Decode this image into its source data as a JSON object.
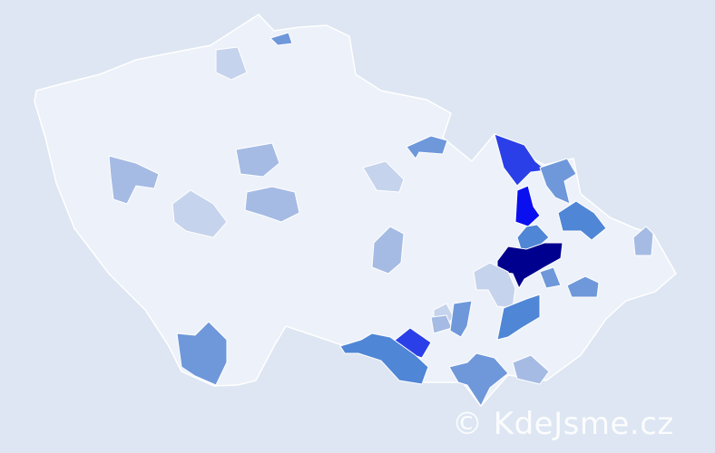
{
  "watermark": "© KdeJsme.cz",
  "colors": {
    "background": "#dde6f2",
    "base": "#edf1f9",
    "border": "#ffffff",
    "level_1": "#c6d3ec",
    "level_2": "#a5bbe4",
    "level_3": "#6f98da",
    "level_4": "#4f86d6",
    "level_5": "#2a3fe8",
    "level_6": "#0a0ff0",
    "level_7": "#00008e"
  },
  "regions": [
    {
      "name": "north-1",
      "level": "level_1"
    },
    {
      "name": "north-2",
      "level": "level_3"
    },
    {
      "name": "west-1",
      "level": "level_2"
    },
    {
      "name": "center-west-1",
      "level": "level_2"
    },
    {
      "name": "center-west-2",
      "level": "level_1"
    },
    {
      "name": "center-1",
      "level": "level_2"
    },
    {
      "name": "center-2",
      "level": "level_1"
    },
    {
      "name": "east-1",
      "level": "level_3"
    },
    {
      "name": "east-2",
      "level": "level_5"
    },
    {
      "name": "east-3",
      "level": "level_3"
    },
    {
      "name": "east-4",
      "level": "level_6"
    },
    {
      "name": "east-5",
      "level": "level_4"
    },
    {
      "name": "east-6",
      "level": "level_4"
    },
    {
      "name": "east-7",
      "level": "level_7"
    },
    {
      "name": "east-8",
      "level": "level_1"
    },
    {
      "name": "east-9",
      "level": "level_3"
    },
    {
      "name": "east-10",
      "level": "level_3"
    },
    {
      "name": "east-11",
      "level": "level_2"
    },
    {
      "name": "vysocina-1",
      "level": "level_2"
    },
    {
      "name": "south-1",
      "level": "level_1"
    },
    {
      "name": "south-2",
      "level": "level_4"
    },
    {
      "name": "south-3",
      "level": "level_2"
    },
    {
      "name": "south-4",
      "level": "level_3"
    },
    {
      "name": "south-5",
      "level": "level_5"
    },
    {
      "name": "south-6",
      "level": "level_4"
    },
    {
      "name": "south-7",
      "level": "level_3"
    },
    {
      "name": "south-8",
      "level": "level_2"
    },
    {
      "name": "southwest-1",
      "level": "level_3"
    }
  ]
}
